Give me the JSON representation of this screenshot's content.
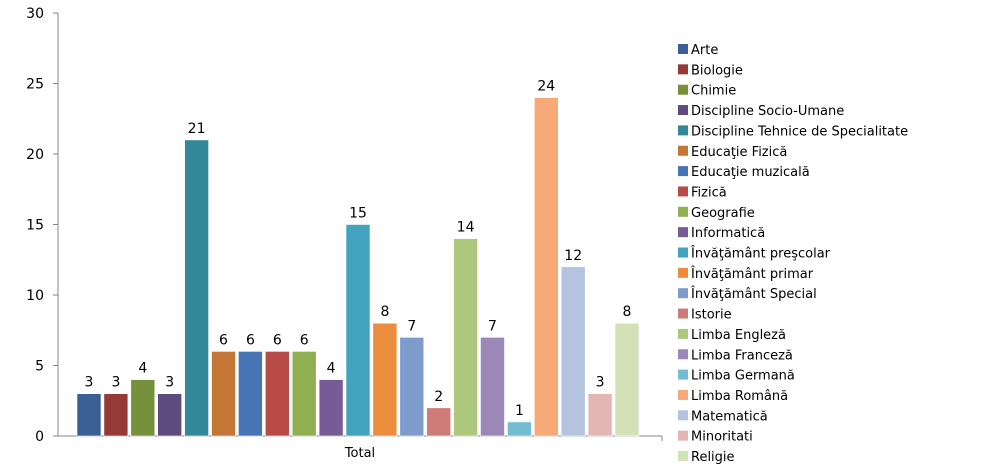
{
  "chart_data": {
    "type": "bar",
    "categories": [
      "Total"
    ],
    "ylim": [
      0,
      30
    ],
    "yticks": [
      0,
      5,
      10,
      15,
      20,
      25,
      30
    ],
    "grid": false,
    "legend_position": "right",
    "series": [
      {
        "name": "Arte",
        "values": [
          3
        ],
        "color": "#3A5F94"
      },
      {
        "name": "Biologie",
        "values": [
          3
        ],
        "color": "#963A38"
      },
      {
        "name": "Chimie",
        "values": [
          4
        ],
        "color": "#76903C"
      },
      {
        "name": "Discipline Socio-Umane",
        "values": [
          3
        ],
        "color": "#5E4A7C"
      },
      {
        "name": "Discipline Tehnice de Specialitate",
        "values": [
          21
        ],
        "color": "#348799"
      },
      {
        "name": "Educaţie Fizică",
        "values": [
          6
        ],
        "color": "#C47636"
      },
      {
        "name": "Educaţie muzicală",
        "values": [
          6
        ],
        "color": "#4674B4"
      },
      {
        "name": "Fizică",
        "values": [
          6
        ],
        "color": "#B84A47"
      },
      {
        "name": "Geografie",
        "values": [
          6
        ],
        "color": "#8FAF51"
      },
      {
        "name": "Informatică",
        "values": [
          4
        ],
        "color": "#775B96"
      },
      {
        "name": "Învăţământ preşcolar",
        "values": [
          15
        ],
        "color": "#43A3BE"
      },
      {
        "name": "Învăţământ primar",
        "values": [
          8
        ],
        "color": "#EA8E3E"
      },
      {
        "name": "Învăţământ Special",
        "values": [
          7
        ],
        "color": "#7D9CCB"
      },
      {
        "name": "Istorie",
        "values": [
          2
        ],
        "color": "#CD7C7A"
      },
      {
        "name": "Limba Engleză",
        "values": [
          14
        ],
        "color": "#ADC77D"
      },
      {
        "name": "Limba Franceză",
        "values": [
          7
        ],
        "color": "#9B88B6"
      },
      {
        "name": "Limba Germană",
        "values": [
          1
        ],
        "color": "#74BCD2"
      },
      {
        "name": "Limba Română",
        "values": [
          24
        ],
        "color": "#F7A977"
      },
      {
        "name": "Matematică",
        "values": [
          12
        ],
        "color": "#B4C3DE"
      },
      {
        "name": "Minoritati",
        "values": [
          3
        ],
        "color": "#E3B6B4"
      },
      {
        "name": "Religie",
        "values": [
          8
        ],
        "color": "#D3E2B6"
      }
    ]
  }
}
